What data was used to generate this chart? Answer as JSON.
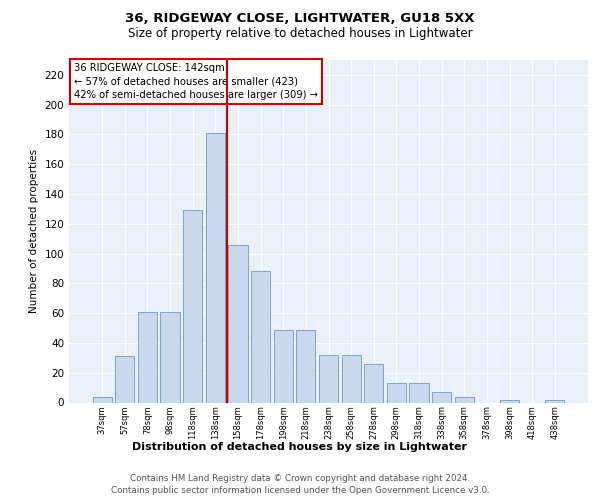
{
  "title1": "36, RIDGEWAY CLOSE, LIGHTWATER, GU18 5XX",
  "title2": "Size of property relative to detached houses in Lightwater",
  "xlabel": "Distribution of detached houses by size in Lightwater",
  "ylabel": "Number of detached properties",
  "bins": [
    "37sqm",
    "57sqm",
    "78sqm",
    "98sqm",
    "118sqm",
    "138sqm",
    "158sqm",
    "178sqm",
    "198sqm",
    "218sqm",
    "238sqm",
    "258sqm",
    "278sqm",
    "298sqm",
    "318sqm",
    "338sqm",
    "358sqm",
    "378sqm",
    "398sqm",
    "418sqm",
    "438sqm"
  ],
  "values": [
    4,
    31,
    61,
    61,
    129,
    181,
    106,
    88,
    49,
    49,
    32,
    32,
    26,
    13,
    13,
    7,
    4,
    0,
    2,
    0,
    2
  ],
  "bar_color": "#c9d9ed",
  "bar_edge_color": "#7099c2",
  "vline_x": 5.5,
  "vline_color": "#cc0000",
  "annotation_text": "36 RIDGEWAY CLOSE: 142sqm\n← 57% of detached houses are smaller (423)\n42% of semi-detached houses are larger (309) →",
  "annotation_box_color": "#ffffff",
  "annotation_box_edge": "#cc0000",
  "ylim": [
    0,
    230
  ],
  "yticks": [
    0,
    20,
    40,
    60,
    80,
    100,
    120,
    140,
    160,
    180,
    200,
    220
  ],
  "footer1": "Contains HM Land Registry data © Crown copyright and database right 2024.",
  "footer2": "Contains public sector information licensed under the Open Government Licence v3.0.",
  "bg_color": "#eaf0f8",
  "fig_bg": "#ffffff",
  "grid_color": "#ffffff"
}
